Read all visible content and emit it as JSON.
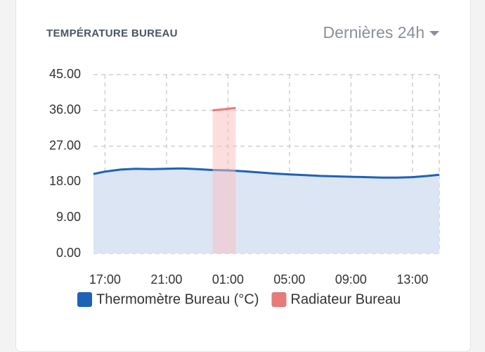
{
  "header": {
    "title": "TEMPÉRATURE BUREAU",
    "range": "Dernières 24h"
  },
  "chart_data": {
    "type": "area",
    "xlim": [
      "16:15",
      "14:45"
    ],
    "xticks": [
      "17:00",
      "21:00",
      "01:00",
      "05:00",
      "09:00",
      "13:00"
    ],
    "ylim": [
      0,
      45
    ],
    "yticks": [
      {
        "value": 0,
        "label": "0.00"
      },
      {
        "value": 9,
        "label": "9.00"
      },
      {
        "value": 18,
        "label": "18.00"
      },
      {
        "value": 27,
        "label": "27.00"
      },
      {
        "value": 36,
        "label": "36.00"
      },
      {
        "value": 45,
        "label": "45.00"
      }
    ],
    "grid": true,
    "legend": "bottom",
    "series": [
      {
        "name": "Thermomètre Bureau (°C)",
        "color": "#1e62b8",
        "fill": "#dbe5f4",
        "x": [
          "16:15",
          "17:00",
          "18:00",
          "19:00",
          "20:00",
          "21:00",
          "22:00",
          "23:00",
          "00:00",
          "01:00",
          "02:00",
          "03:00",
          "04:00",
          "05:00",
          "06:00",
          "07:00",
          "08:00",
          "09:00",
          "10:00",
          "11:00",
          "12:00",
          "13:00",
          "14:00",
          "14:45"
        ],
        "values": [
          20.0,
          20.6,
          21.1,
          21.3,
          21.2,
          21.3,
          21.4,
          21.2,
          21.0,
          20.9,
          20.7,
          20.4,
          20.1,
          19.9,
          19.7,
          19.5,
          19.4,
          19.3,
          19.2,
          19.1,
          19.1,
          19.2,
          19.5,
          19.8
        ]
      },
      {
        "name": "Radiateur Bureau",
        "color": "#e57b7b",
        "fill": "rgba(252,190,190,0.5)",
        "x": [
          "00:00",
          "00:30",
          "01:00",
          "01:30"
        ],
        "values": [
          36.0,
          36.2,
          36.4,
          36.6
        ]
      }
    ]
  }
}
